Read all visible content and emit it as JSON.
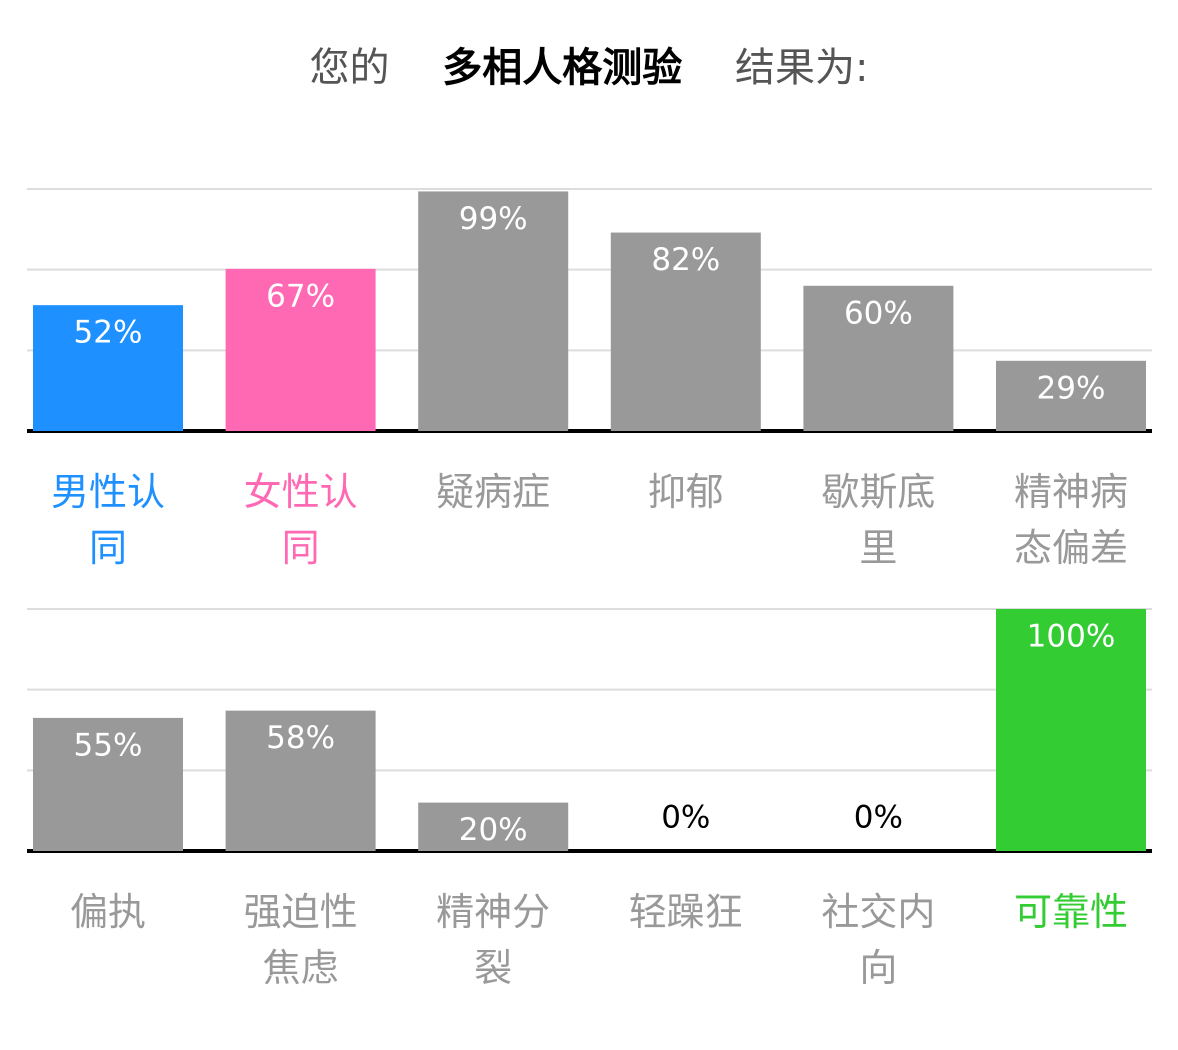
{
  "header": {
    "prefix": "您的",
    "title": "多相人格测验",
    "suffix": "结果为:"
  },
  "chart_data": [
    {
      "type": "bar",
      "categories": [
        "男性认同",
        "女性认同",
        "疑病症",
        "抑郁",
        "歇斯底里",
        "精神病态偏差"
      ],
      "values": [
        52,
        67,
        99,
        82,
        60,
        29
      ],
      "value_labels": [
        "52%",
        "67%",
        "99%",
        "82%",
        "60%",
        "29%"
      ],
      "colors": [
        "#1e90ff",
        "#ff69b4",
        "#999999",
        "#999999",
        "#999999",
        "#999999"
      ],
      "ylim": [
        0,
        100
      ],
      "yticks": [
        0,
        33.3,
        66.7,
        100
      ],
      "grid": true
    },
    {
      "type": "bar",
      "categories": [
        "偏执",
        "强迫性焦虑",
        "精神分裂",
        "轻躁狂",
        "社交内向",
        "可靠性"
      ],
      "values": [
        55,
        58,
        20,
        0,
        0,
        100
      ],
      "value_labels": [
        "55%",
        "58%",
        "20%",
        "0%",
        "0%",
        "100%"
      ],
      "colors": [
        "#999999",
        "#999999",
        "#999999",
        "#999999",
        "#999999",
        "#33cc33"
      ],
      "ylim": [
        0,
        100
      ],
      "yticks": [
        0,
        33.3,
        66.7,
        100
      ],
      "grid": true
    }
  ]
}
